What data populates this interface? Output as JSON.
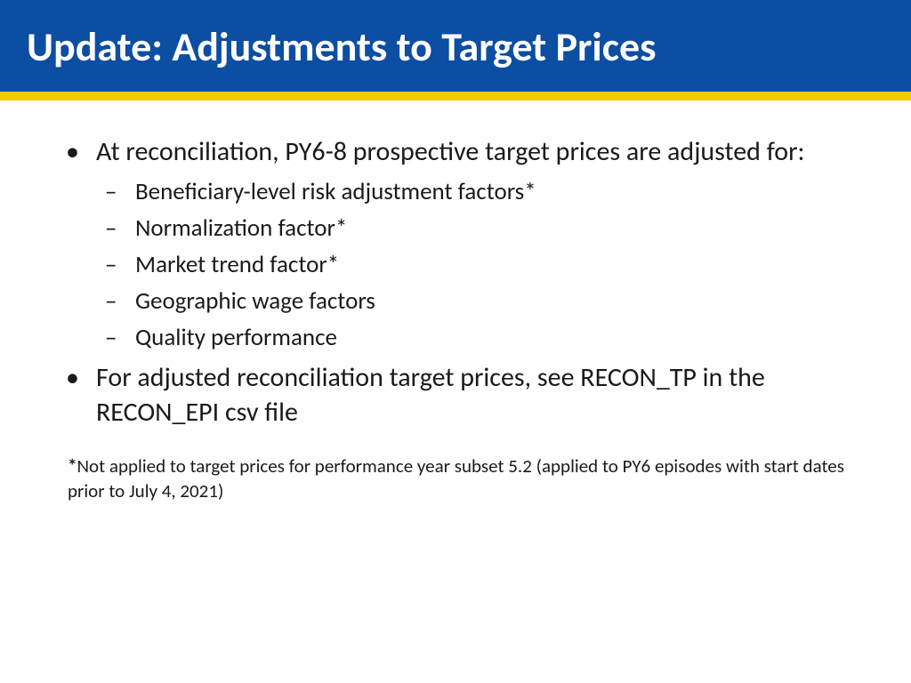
{
  "colors": {
    "header_bg": "#0b4ea2",
    "accent": "#f7c800",
    "title": "#ffffff",
    "text": "#1a1a1a"
  },
  "title": "Update: Adjustments to Target Prices",
  "bullets": [
    {
      "text": "At reconciliation, PY6-8 prospective target prices are adjusted for:",
      "sub": [
        "Beneficiary-level risk adjustment factors*",
        "Normalization factor*",
        "Market trend factor*",
        "Geographic wage factors",
        "Quality performance"
      ]
    },
    {
      "text": "For adjusted reconciliation target prices, see RECON_TP in the RECON_EPI csv file",
      "sub": []
    }
  ],
  "footnote_marker": "*",
  "footnote_text": "Not applied to target prices for performance year subset 5.2 (applied to PY6 episodes with start dates prior to July 4, 2021)"
}
